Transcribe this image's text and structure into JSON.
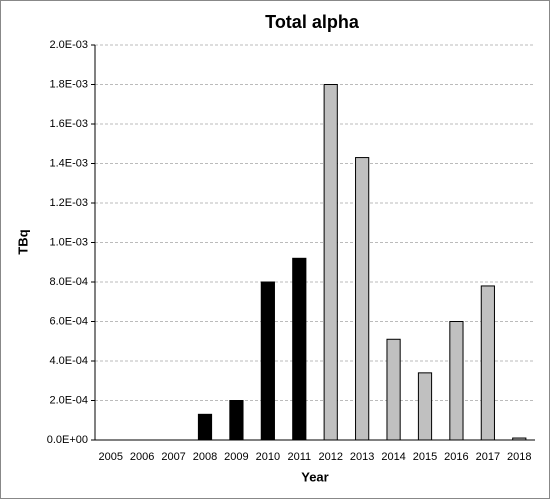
{
  "chart_data": {
    "type": "bar",
    "title": "Total alpha",
    "x_label": "Year",
    "y_label": "TBq",
    "categories": [
      "2005",
      "2006",
      "2007",
      "2008",
      "2009",
      "2010",
      "2011",
      "2012",
      "2013",
      "2014",
      "2015",
      "2016",
      "2017",
      "2018"
    ],
    "values": [
      0,
      0,
      0,
      0.00013,
      0.0002,
      0.0008,
      0.00092,
      0.0018,
      0.00143,
      0.00051,
      0.00034,
      0.0006,
      0.00078,
      1e-05
    ],
    "colors": [
      "#000000",
      "#000000",
      "#000000",
      "#000000",
      "#000000",
      "#000000",
      "#000000",
      "#c0c0c0",
      "#c0c0c0",
      "#c0c0c0",
      "#c0c0c0",
      "#c0c0c0",
      "#c0c0c0",
      "#c0c0c0"
    ],
    "ylim": [
      0,
      0.002
    ],
    "yticks": [
      {
        "value": 0,
        "label": "0.0E+00"
      },
      {
        "value": 0.0002,
        "label": "2.0E-04"
      },
      {
        "value": 0.0004,
        "label": "4.0E-04"
      },
      {
        "value": 0.0006,
        "label": "6.0E-04"
      },
      {
        "value": 0.0008,
        "label": "8.0E-04"
      },
      {
        "value": 0.001,
        "label": "1.0E-03"
      },
      {
        "value": 0.0012,
        "label": "1.2E-03"
      },
      {
        "value": 0.0014,
        "label": "1.4E-03"
      },
      {
        "value": 0.0016,
        "label": "1.6E-03"
      },
      {
        "value": 0.0018,
        "label": "1.8E-03"
      },
      {
        "value": 0.002,
        "label": "2.0E-03"
      }
    ],
    "grid": true
  }
}
